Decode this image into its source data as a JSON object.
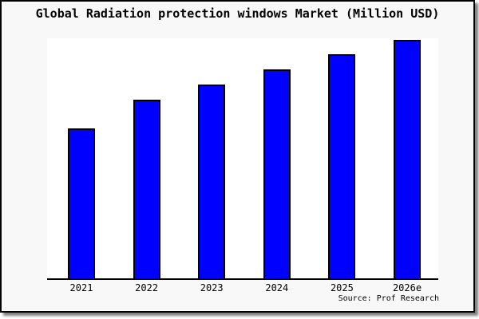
{
  "window": {
    "background_color": "#f8f8f8",
    "plot_background_color": "#ffffff",
    "border_color": "#000000",
    "shadow_color": "#808080"
  },
  "header": {
    "title": "Global Radiation protection windows Market (Million USD)"
  },
  "footer": {
    "source_label": "Source: Prof Research"
  },
  "chart_data": {
    "type": "bar",
    "title": "Global Radiation protection windows Market (Million USD)",
    "categories": [
      "2021",
      "2022",
      "2023",
      "2024",
      "2025",
      "2026e"
    ],
    "values": [
      188,
      224,
      243,
      262,
      281,
      299
    ],
    "value_scale_note": "no y-axis ticks or gridlines shown; values are relative bar heights",
    "ylim": [
      0,
      301
    ],
    "xlabel": "",
    "ylabel": "",
    "grid": false,
    "legend": false,
    "bar_color": "#0000ff",
    "bar_edge_color": "#000000",
    "axis_line_color": "#000000",
    "source": "Source: Prof Research"
  }
}
